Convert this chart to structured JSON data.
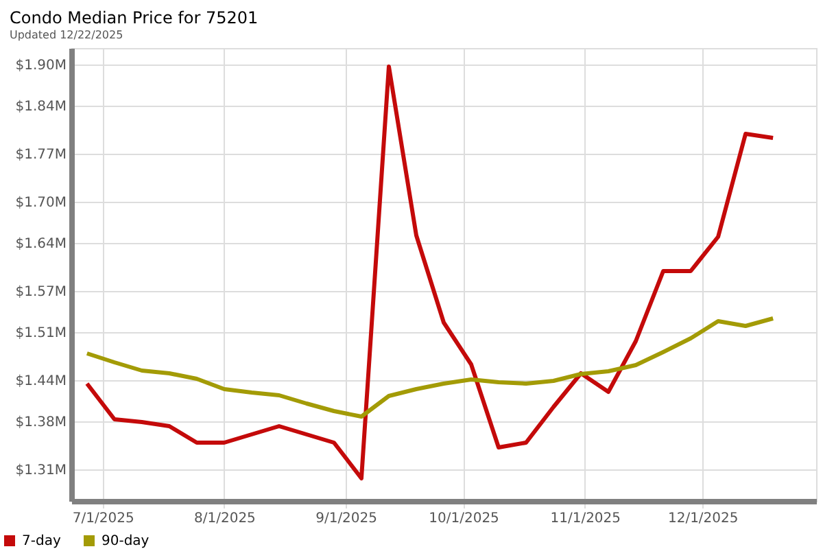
{
  "chart_data": {
    "type": "line",
    "title": "Condo Median Price for 75201",
    "subtitle": "Updated 12/22/2025",
    "x": [
      "2025-06-27",
      "2025-07-04",
      "2025-07-11",
      "2025-07-18",
      "2025-07-25",
      "2025-08-01",
      "2025-08-08",
      "2025-08-15",
      "2025-08-22",
      "2025-08-29",
      "2025-09-05",
      "2025-09-12",
      "2025-09-19",
      "2025-09-26",
      "2025-10-03",
      "2025-10-10",
      "2025-10-17",
      "2025-10-24",
      "2025-10-31",
      "2025-11-07",
      "2025-11-14",
      "2025-11-21",
      "2025-11-28",
      "2025-12-05",
      "2025-12-12",
      "2025-12-19"
    ],
    "series": [
      {
        "name": "7-day",
        "color": "#c40a0a",
        "values": [
          1.435,
          1.383,
          1.379,
          1.373,
          1.349,
          1.349,
          1.361,
          1.373,
          1.361,
          1.349,
          1.297,
          1.897,
          1.651,
          1.524,
          1.463,
          1.342,
          1.349,
          1.401,
          1.45,
          1.423,
          1.497,
          1.599,
          1.599,
          1.649,
          1.799,
          1.793
        ]
      },
      {
        "name": "90-day",
        "color": "#a39b06",
        "values": [
          1.479,
          1.466,
          1.454,
          1.45,
          1.442,
          1.427,
          1.422,
          1.418,
          1.406,
          1.395,
          1.387,
          1.417,
          1.427,
          1.435,
          1.441,
          1.437,
          1.435,
          1.439,
          1.449,
          1.453,
          1.462,
          1.481,
          1.501,
          1.526,
          1.519,
          1.53
        ]
      }
    ],
    "xlim": [
      "2025-06-23",
      "2025-12-30"
    ],
    "xticks": [
      {
        "value": "2025-07-01",
        "label": "7/1/2025"
      },
      {
        "value": "2025-08-01",
        "label": "8/1/2025"
      },
      {
        "value": "2025-09-01",
        "label": "9/1/2025"
      },
      {
        "value": "2025-10-01",
        "label": "10/1/2025"
      },
      {
        "value": "2025-11-01",
        "label": "11/1/2025"
      },
      {
        "value": "2025-12-01",
        "label": "12/1/2025"
      }
    ],
    "ylim": [
      1.264,
      1.924
    ],
    "yticks": [
      {
        "value": 1.31,
        "label": "$1.31M"
      },
      {
        "value": 1.38,
        "label": "$1.38M"
      },
      {
        "value": 1.44,
        "label": "$1.44M"
      },
      {
        "value": 1.51,
        "label": "$1.51M"
      },
      {
        "value": 1.57,
        "label": "$1.57M"
      },
      {
        "value": 1.64,
        "label": "$1.64M"
      },
      {
        "value": 1.7,
        "label": "$1.70M"
      },
      {
        "value": 1.77,
        "label": "$1.77M"
      },
      {
        "value": 1.84,
        "label": "$1.84M"
      },
      {
        "value": 1.9,
        "label": "$1.90M"
      }
    ],
    "grid": true,
    "legend": "bottom left",
    "marker": "none",
    "line_style": "solid"
  }
}
